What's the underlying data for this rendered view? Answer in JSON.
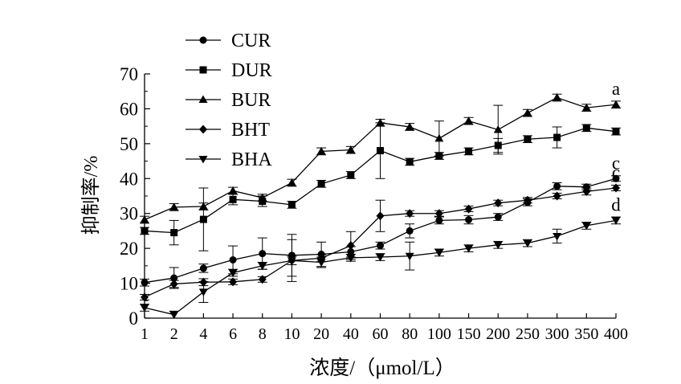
{
  "chart_data": {
    "type": "line",
    "title": "",
    "xlabel": "浓度/（μmol/L）",
    "ylabel": "抑制率/%",
    "categories": [
      "1",
      "2",
      "4",
      "6",
      "8",
      "10",
      "20",
      "40",
      "60",
      "80",
      "100",
      "150",
      "200",
      "250",
      "300",
      "350",
      "400"
    ],
    "yticks": [
      "0",
      "10",
      "20",
      "30",
      "40",
      "50",
      "60",
      "70"
    ],
    "ylim": [
      0,
      70
    ],
    "grid": false,
    "legend_position": "top-left",
    "series": [
      {
        "name": "CUR",
        "marker": "circle",
        "end_label": "c",
        "values": [
          10.2,
          11.5,
          14.3,
          16.7,
          18.5,
          18.0,
          18.3,
          19.0,
          20.8,
          25.0,
          28.0,
          28.2,
          29.0,
          33.2,
          37.8,
          37.6,
          40.0
        ],
        "errors": [
          1.0,
          3.0,
          1.2,
          4.0,
          4.5,
          6.0,
          3.5,
          1.5,
          1.0,
          2.0,
          1.0,
          1.2,
          1.0,
          1.0,
          1.0,
          0.8,
          0.8
        ]
      },
      {
        "name": "DUR",
        "marker": "square",
        "end_label": "",
        "values": [
          25.0,
          24.5,
          28.3,
          34.0,
          33.5,
          32.5,
          38.5,
          41.0,
          48.0,
          44.8,
          46.5,
          47.8,
          49.5,
          51.3,
          51.8,
          54.5,
          53.5
        ],
        "errors": [
          1.0,
          3.5,
          9.0,
          1.5,
          1.5,
          1.0,
          1.0,
          1.0,
          8.0,
          1.0,
          1.0,
          1.0,
          2.0,
          1.0,
          3.0,
          1.0,
          1.0
        ]
      },
      {
        "name": "BUR",
        "marker": "triangle-up",
        "end_label": "a",
        "values": [
          28.2,
          31.8,
          32.0,
          36.5,
          34.5,
          38.8,
          47.8,
          48.2,
          56.0,
          54.8,
          51.5,
          56.5,
          54.0,
          58.8,
          63.2,
          60.3,
          61.2
        ],
        "errors": [
          1.0,
          1.0,
          1.0,
          1.0,
          1.0,
          1.0,
          1.0,
          1.0,
          1.0,
          1.0,
          5.0,
          1.0,
          7.0,
          1.0,
          1.0,
          1.0,
          1.0
        ]
      },
      {
        "name": "BHT",
        "marker": "diamond",
        "end_label": "c",
        "values": [
          6.0,
          9.8,
          10.3,
          10.4,
          11.1,
          16.5,
          17.2,
          20.8,
          29.3,
          30.0,
          30.0,
          31.3,
          33.0,
          33.8,
          35.0,
          36.3,
          37.3
        ],
        "errors": [
          0.8,
          1.0,
          1.0,
          0.8,
          0.8,
          1.2,
          1.0,
          4.0,
          4.5,
          0.8,
          0.8,
          0.8,
          0.8,
          0.8,
          0.8,
          1.0,
          0.8
        ]
      },
      {
        "name": "BHA",
        "marker": "triangle-down",
        "end_label": "d",
        "values": [
          3.0,
          1.0,
          7.5,
          13.0,
          15.0,
          16.5,
          16.0,
          17.3,
          17.5,
          17.8,
          18.8,
          20.0,
          21.0,
          21.5,
          23.5,
          26.5,
          28.0
        ],
        "errors": [
          1.0,
          1.0,
          3.0,
          1.0,
          1.0,
          6.0,
          1.5,
          1.0,
          1.0,
          4.0,
          1.0,
          1.0,
          1.0,
          1.0,
          2.0,
          1.0,
          1.0
        ]
      }
    ]
  }
}
